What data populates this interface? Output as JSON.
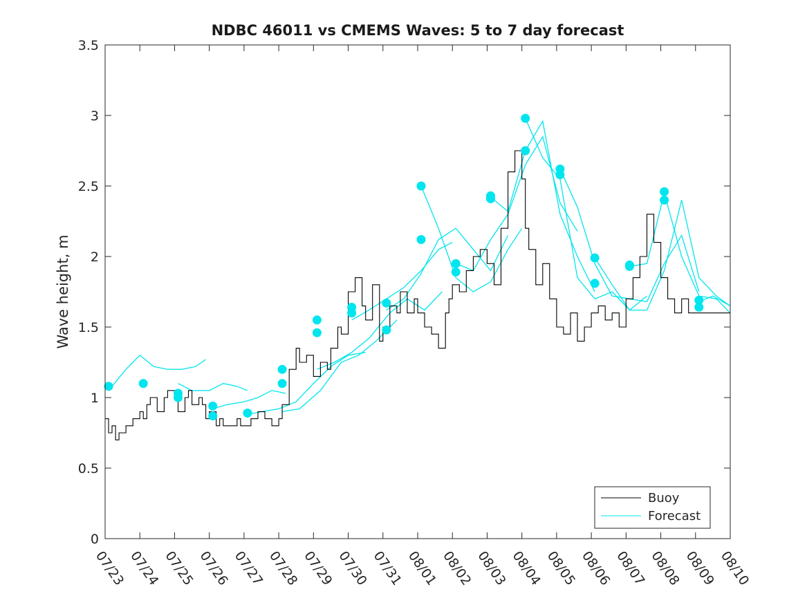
{
  "chart_data": {
    "type": "line",
    "title": "NDBC 46011 vs CMEMS Waves: 5 to 7 day forecast",
    "ylabel": "Wave height, m",
    "xlabel": "",
    "xlim": [
      "07/23",
      "08/10"
    ],
    "ylim": [
      0,
      3.5
    ],
    "x_ticks": [
      "07/23",
      "07/24",
      "07/25",
      "07/26",
      "07/27",
      "07/28",
      "07/29",
      "07/30",
      "07/31",
      "08/01",
      "08/02",
      "08/03",
      "08/04",
      "08/05",
      "08/06",
      "08/07",
      "08/08",
      "08/09",
      "08/10"
    ],
    "y_ticks": [
      "0",
      "0.5",
      "1",
      "1.5",
      "2",
      "2.5",
      "3",
      "3.5"
    ],
    "grid": false,
    "legend": {
      "position": "bottom-right",
      "entries": [
        {
          "label": "Buoy",
          "color": "#000000"
        },
        {
          "label": "Forecast",
          "color": "#00e5ee"
        }
      ]
    },
    "colors": {
      "buoy": "#000000",
      "forecast": "#00e5ee"
    },
    "series": [
      {
        "name": "Buoy",
        "x_day_of_month_starting_07_23": [
          0,
          0.1,
          0.2,
          0.3,
          0.4,
          0.6,
          0.8,
          1.0,
          1.1,
          1.2,
          1.3,
          1.5,
          1.7,
          1.8,
          2.0,
          2.1,
          2.3,
          2.4,
          2.5,
          2.7,
          2.8,
          2.9,
          3.0,
          3.2,
          3.3,
          3.4,
          3.6,
          3.8,
          3.9,
          4.0,
          4.2,
          4.4,
          4.6,
          4.8,
          5.0,
          5.1,
          5.3,
          5.5,
          5.6,
          5.8,
          6.0,
          6.2,
          6.4,
          6.5,
          6.7,
          6.8,
          7.0,
          7.2,
          7.4,
          7.5,
          7.7,
          7.9,
          8.0,
          8.2,
          8.4,
          8.5,
          8.7,
          8.9,
          9.0,
          9.2,
          9.4,
          9.6,
          9.8,
          9.9,
          10.0,
          10.2,
          10.4,
          10.6,
          10.8,
          11.0,
          11.2,
          11.4,
          11.6,
          11.8,
          12.0,
          12.1,
          12.2,
          12.4,
          12.6,
          12.8,
          13.0,
          13.2,
          13.4,
          13.6,
          13.8,
          14.0,
          14.2,
          14.4,
          14.6,
          14.8,
          15.0,
          15.2,
          15.4,
          15.6,
          15.8,
          16.0,
          16.2,
          16.4,
          16.6,
          16.8,
          17.0,
          17.2,
          17.4,
          17.6,
          17.8,
          18.0
        ],
        "y": [
          0.85,
          0.75,
          0.8,
          0.7,
          0.75,
          0.8,
          0.85,
          0.9,
          0.85,
          0.95,
          1.0,
          0.9,
          1.0,
          1.05,
          1.0,
          0.9,
          1.0,
          1.05,
          0.95,
          1.0,
          0.95,
          0.85,
          0.9,
          0.8,
          0.85,
          0.8,
          0.8,
          0.85,
          0.8,
          0.8,
          0.85,
          0.9,
          0.85,
          0.8,
          0.85,
          0.95,
          1.2,
          1.35,
          1.25,
          1.3,
          1.15,
          1.25,
          1.2,
          1.35,
          1.5,
          1.45,
          1.75,
          1.85,
          1.65,
          1.55,
          1.8,
          1.4,
          1.5,
          1.65,
          1.6,
          1.75,
          1.6,
          1.7,
          1.6,
          1.5,
          1.45,
          1.35,
          1.6,
          1.7,
          1.8,
          1.75,
          1.9,
          2.0,
          2.05,
          1.95,
          1.8,
          2.2,
          2.6,
          2.75,
          2.55,
          2.2,
          2.05,
          1.8,
          1.95,
          1.7,
          1.5,
          1.45,
          1.6,
          1.4,
          1.5,
          1.6,
          1.65,
          1.55,
          1.6,
          1.5,
          1.7,
          1.85,
          2.0,
          2.3,
          2.1,
          1.85,
          1.7,
          1.6,
          1.7,
          1.6,
          1.6,
          1.6,
          1.6,
          1.6,
          1.6,
          1.6
        ]
      },
      {
        "name": "Forecast",
        "runs": [
          {
            "x": [
              0.2,
              0.6,
              1.0,
              1.4,
              1.8,
              2.2,
              2.6,
              2.9
            ],
            "y": [
              1.08,
              1.2,
              1.3,
              1.22,
              1.2,
              1.2,
              1.22,
              1.27
            ]
          },
          {
            "x": [
              2.1,
              2.5,
              3.0,
              3.4,
              3.8,
              4.1
            ],
            "y": [
              1.1,
              1.05,
              1.05,
              1.1,
              1.08,
              1.05
            ]
          },
          {
            "x": [
              3.1,
              3.5,
              4.0,
              4.4,
              4.8,
              5.2
            ],
            "y": [
              0.92,
              0.95,
              0.97,
              1.0,
              1.05,
              1.03
            ]
          },
          {
            "x": [
              4.1,
              4.5,
              5.0,
              5.5,
              6.0,
              6.5,
              7.0,
              7.5
            ],
            "y": [
              0.88,
              0.9,
              0.92,
              0.97,
              1.1,
              1.22,
              1.3,
              1.32
            ]
          },
          {
            "x": [
              5.1,
              5.6,
              6.2,
              6.8,
              7.3,
              7.8,
              8.4
            ],
            "y": [
              0.9,
              0.92,
              1.05,
              1.25,
              1.3,
              1.4,
              1.55
            ]
          },
          {
            "x": [
              6.1,
              6.6,
              7.1,
              7.6,
              8.2,
              8.7,
              9.2,
              9.7
            ],
            "y": [
              1.2,
              1.25,
              1.32,
              1.42,
              1.6,
              1.7,
              1.62,
              1.75
            ]
          },
          {
            "x": [
              7.1,
              7.6,
              8.1,
              8.6,
              9.1,
              9.6,
              10.0
            ],
            "y": [
              1.55,
              1.62,
              1.7,
              1.78,
              1.9,
              2.05,
              2.1
            ]
          },
          {
            "x": [
              8.1,
              8.6,
              9.1,
              9.6,
              10.1,
              10.6,
              11.1,
              11.6
            ],
            "y": [
              1.62,
              1.7,
              1.88,
              2.12,
              2.2,
              2.05,
              1.9,
              2.15
            ]
          },
          {
            "x": [
              9.1,
              9.6,
              10.1,
              10.6,
              11.1,
              11.6,
              12.0
            ],
            "y": [
              2.5,
              2.2,
              1.85,
              1.75,
              1.82,
              2.05,
              2.2
            ]
          },
          {
            "x": [
              10.1,
              10.6,
              11.1,
              11.6,
              12.1,
              12.6,
              13.1,
              13.6
            ],
            "y": [
              1.95,
              1.9,
              2.12,
              2.3,
              2.65,
              2.85,
              2.38,
              2.18
            ]
          },
          {
            "x": [
              11.1,
              11.6,
              12.1,
              12.6,
              13.1,
              13.6,
              14.1
            ],
            "y": [
              2.42,
              2.32,
              2.75,
              2.96,
              2.3,
              2.0,
              1.75
            ]
          },
          {
            "x": [
              12.1,
              12.6,
              13.1,
              13.6,
              14.1,
              14.6,
              15.1,
              15.6
            ],
            "y": [
              2.98,
              2.7,
              2.55,
              1.85,
              1.7,
              1.75,
              1.62,
              1.72
            ]
          },
          {
            "x": [
              13.1,
              13.6,
              14.1,
              14.6,
              15.1,
              15.6,
              16.1,
              16.6,
              17.1
            ],
            "y": [
              2.62,
              2.35,
              1.95,
              1.72,
              1.7,
              1.68,
              1.95,
              2.15,
              1.75
            ]
          },
          {
            "x": [
              14.1,
              14.6,
              15.1,
              15.6,
              16.1,
              16.6,
              17.1,
              17.6,
              18.0
            ],
            "y": [
              1.99,
              1.8,
              1.62,
              1.62,
              1.9,
              2.4,
              1.85,
              1.72,
              1.65
            ]
          },
          {
            "x": [
              15.1,
              15.6,
              16.1,
              16.6,
              17.1,
              17.6,
              18.0
            ],
            "y": [
              1.93,
              1.95,
              2.45,
              2.0,
              1.72,
              1.7,
              1.6
            ]
          },
          {
            "x": [
              17.1,
              17.5,
              18.0
            ],
            "y": [
              1.68,
              1.72,
              1.65
            ]
          }
        ],
        "start_markers": [
          {
            "x": 0.1,
            "y": 1.08
          },
          {
            "x": 1.1,
            "y": 1.1
          },
          {
            "x": 2.1,
            "y": 1.03
          },
          {
            "x": 2.1,
            "y": 1.0
          },
          {
            "x": 3.1,
            "y": 0.94
          },
          {
            "x": 3.1,
            "y": 0.87
          },
          {
            "x": 4.1,
            "y": 0.89
          },
          {
            "x": 5.1,
            "y": 1.2
          },
          {
            "x": 5.1,
            "y": 1.1
          },
          {
            "x": 6.1,
            "y": 1.55
          },
          {
            "x": 6.1,
            "y": 1.46
          },
          {
            "x": 7.1,
            "y": 1.64
          },
          {
            "x": 7.1,
            "y": 1.6
          },
          {
            "x": 8.1,
            "y": 1.67
          },
          {
            "x": 8.1,
            "y": 1.48
          },
          {
            "x": 9.1,
            "y": 2.5
          },
          {
            "x": 9.1,
            "y": 2.12
          },
          {
            "x": 10.1,
            "y": 1.95
          },
          {
            "x": 10.1,
            "y": 1.89
          },
          {
            "x": 11.1,
            "y": 2.43
          },
          {
            "x": 11.1,
            "y": 2.41
          },
          {
            "x": 12.1,
            "y": 2.98
          },
          {
            "x": 12.1,
            "y": 2.75
          },
          {
            "x": 13.1,
            "y": 2.62
          },
          {
            "x": 13.1,
            "y": 2.58
          },
          {
            "x": 14.1,
            "y": 1.99
          },
          {
            "x": 14.1,
            "y": 1.81
          },
          {
            "x": 15.1,
            "y": 1.94
          },
          {
            "x": 15.1,
            "y": 1.93
          },
          {
            "x": 16.1,
            "y": 2.46
          },
          {
            "x": 16.1,
            "y": 2.4
          },
          {
            "x": 17.1,
            "y": 1.69
          },
          {
            "x": 17.1,
            "y": 1.64
          }
        ]
      }
    ]
  }
}
